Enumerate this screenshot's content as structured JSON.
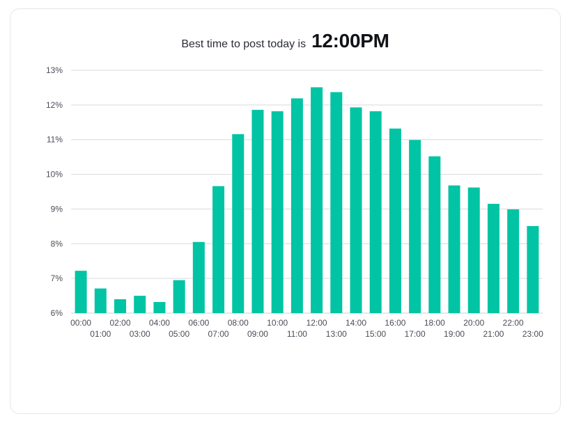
{
  "header": {
    "lead": "Best time to post today is",
    "best_time": "12:00PM"
  },
  "chart_data": {
    "type": "bar",
    "title": "Best time to post today is 12:00PM",
    "xlabel": "",
    "ylabel": "",
    "categories": [
      "00:00",
      "01:00",
      "02:00",
      "03:00",
      "04:00",
      "05:00",
      "06:00",
      "07:00",
      "08:00",
      "09:00",
      "10:00",
      "11:00",
      "12:00",
      "13:00",
      "14:00",
      "15:00",
      "16:00",
      "17:00",
      "18:00",
      "19:00",
      "20:00",
      "21:00",
      "22:00",
      "23:00"
    ],
    "values": [
      7.22,
      6.71,
      6.4,
      6.5,
      6.32,
      6.95,
      8.05,
      9.66,
      11.16,
      11.86,
      11.82,
      12.19,
      12.51,
      12.37,
      11.93,
      11.82,
      11.32,
      10.99,
      10.52,
      9.68,
      9.62,
      9.15,
      8.99,
      8.51
    ],
    "ylim": [
      6,
      13
    ],
    "yticks": [
      "6%",
      "7%",
      "8%",
      "9%",
      "10%",
      "11%",
      "12%",
      "13%"
    ],
    "ytick_values": [
      6,
      7,
      8,
      9,
      10,
      11,
      12,
      13
    ],
    "grid": true,
    "legend": "none",
    "bar_color": "#00c4a3"
  }
}
